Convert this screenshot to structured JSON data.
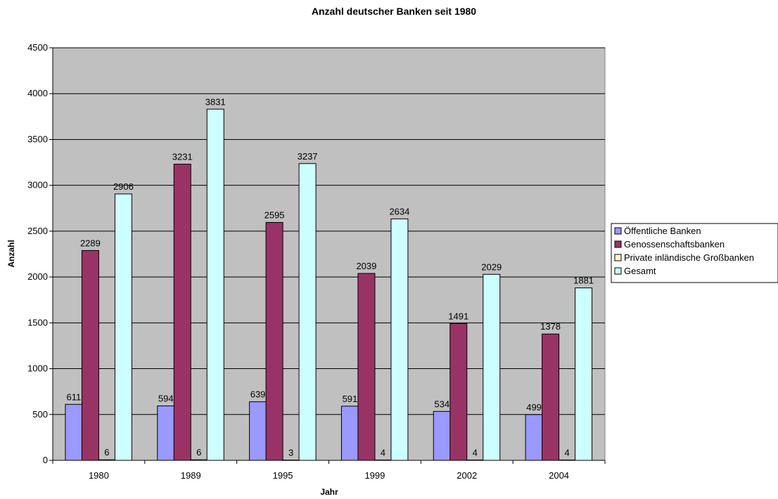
{
  "chart_data": {
    "type": "bar",
    "title": "Anzahl deutscher Banken seit 1980",
    "xlabel": "Jahr",
    "ylabel": "Anzahl",
    "ylim": [
      0,
      4500
    ],
    "yticks": [
      0,
      500,
      1000,
      1500,
      2000,
      2500,
      3000,
      3500,
      4000,
      4500
    ],
    "grid": true,
    "legend_position": "right",
    "plot_background": "#c0c0c0",
    "categories": [
      "1980",
      "1989",
      "1995",
      "1999",
      "2002",
      "2004"
    ],
    "series": [
      {
        "name": "Öffentliche Banken",
        "color": "#9999ff",
        "values": [
          611,
          594,
          639,
          591,
          534,
          499
        ]
      },
      {
        "name": "Genossenschaftsbanken",
        "color": "#993366",
        "values": [
          2289,
          3231,
          2595,
          2039,
          1491,
          1378
        ]
      },
      {
        "name": "Private inländische Großbanken",
        "color": "#ffffcc",
        "values": [
          6,
          6,
          3,
          4,
          4,
          4
        ]
      },
      {
        "name": "Gesamt",
        "color": "#ccffff",
        "values": [
          2906,
          3831,
          3237,
          2634,
          2029,
          1881
        ]
      }
    ]
  }
}
